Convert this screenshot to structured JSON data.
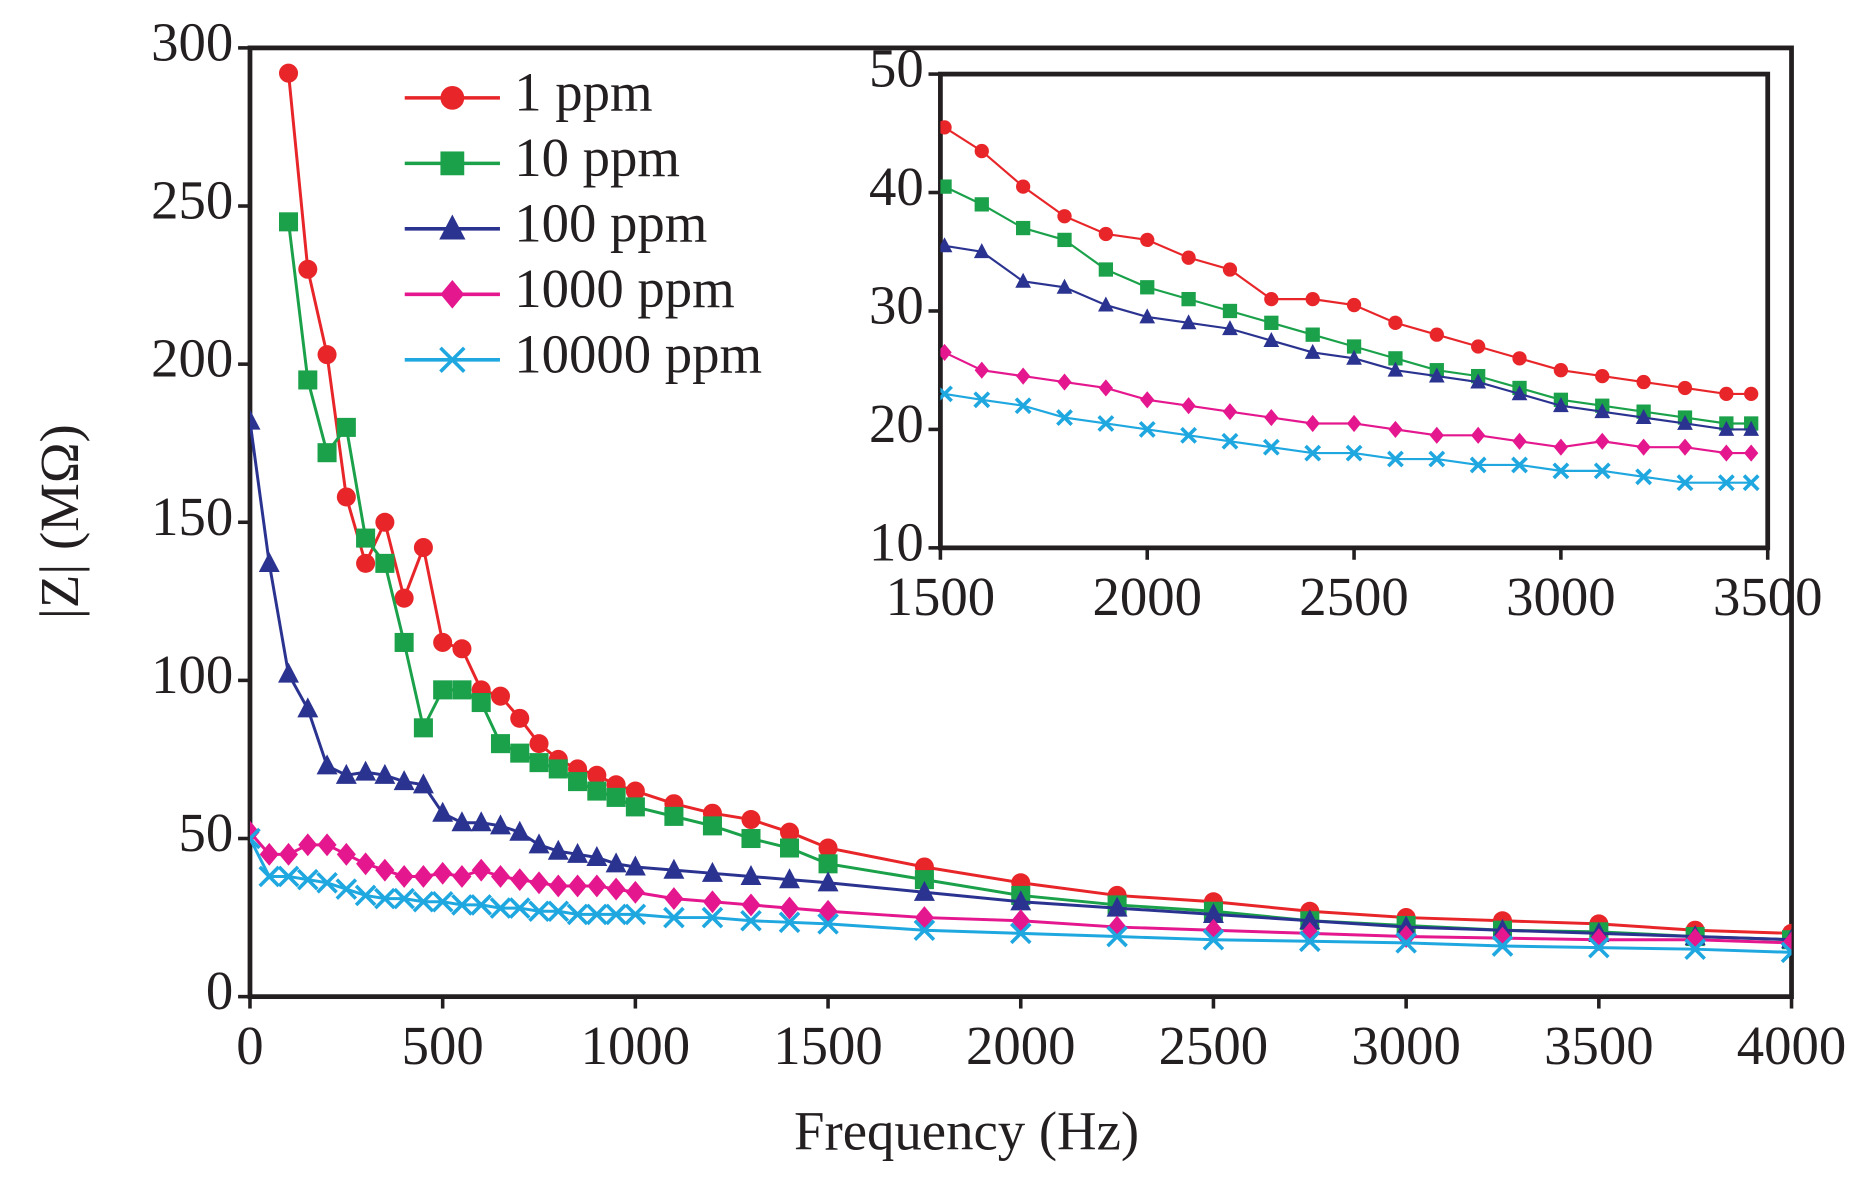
{
  "chart_data": [
    {
      "type": "line",
      "xlabel": "Frequency (Hz)",
      "ylabel": "|Z| (MΩ)",
      "x": [
        0,
        50,
        100,
        150,
        200,
        250,
        300,
        350,
        400,
        450,
        500,
        550,
        600,
        650,
        700,
        750,
        800,
        850,
        900,
        950,
        1000,
        1100,
        1200,
        1300,
        1400,
        1500,
        1750,
        2000,
        2250,
        2500,
        2750,
        3000,
        3250,
        3500,
        3750,
        4000
      ],
      "xlim": [
        0,
        4000
      ],
      "xticks": [
        0,
        500,
        1000,
        1500,
        2000,
        2500,
        3000,
        3500,
        4000
      ],
      "ylim": [
        0,
        300
      ],
      "yticks": [
        0,
        50,
        100,
        150,
        200,
        250,
        300
      ],
      "legend": "upper left",
      "series": [
        {
          "name": "1 ppm",
          "color": "#e8262a",
          "marker": "circle",
          "values": [
            null,
            null,
            292,
            230,
            203,
            158,
            137,
            150,
            126,
            142,
            112,
            110,
            97,
            95,
            88,
            80,
            75,
            72,
            70,
            67,
            65,
            61,
            58,
            56,
            52,
            47,
            41,
            36,
            32,
            30,
            27,
            25,
            24,
            23,
            21,
            20
          ]
        },
        {
          "name": "10 ppm",
          "color": "#1aa14a",
          "marker": "square",
          "values": [
            null,
            null,
            245,
            195,
            172,
            180,
            145,
            137,
            112,
            85,
            97,
            97,
            93,
            80,
            77,
            74,
            72,
            68,
            65,
            63,
            60,
            57,
            54,
            50,
            47,
            42,
            37,
            32,
            29,
            27,
            24,
            22.5,
            21,
            20.5,
            19,
            18
          ]
        },
        {
          "name": "100 ppm",
          "color": "#2b3390",
          "marker": "triangle",
          "values": [
            182,
            137,
            102,
            91,
            73,
            70,
            71,
            70,
            68,
            67,
            58,
            55,
            55,
            54,
            52,
            48,
            46,
            45,
            44,
            42,
            41,
            40,
            39,
            38,
            37,
            36,
            33,
            30,
            28,
            26,
            24,
            22,
            21,
            20,
            19,
            18
          ]
        },
        {
          "name": "1000 ppm",
          "color": "#e5178e",
          "marker": "diamond",
          "values": [
            52,
            45,
            45,
            48,
            48,
            45,
            42,
            40,
            38,
            38,
            39,
            38,
            40,
            38,
            37,
            36,
            35,
            35,
            35,
            34,
            33,
            31,
            30,
            29,
            28,
            27,
            25,
            24,
            22,
            21,
            20,
            19,
            18.5,
            18,
            18,
            17
          ]
        },
        {
          "name": "10000 ppm",
          "color": "#1fa7e0",
          "marker": "x",
          "values": [
            50,
            38,
            38,
            37,
            36,
            34,
            32,
            31,
            31,
            30,
            30,
            29,
            29,
            28,
            28,
            27,
            27,
            26,
            26,
            26,
            26,
            25,
            25,
            24,
            23.5,
            23,
            21,
            20,
            19,
            18,
            17.5,
            17,
            16,
            15.5,
            15,
            14
          ]
        }
      ]
    },
    {
      "type": "line",
      "x": [
        1510,
        1600,
        1700,
        1800,
        1900,
        2000,
        2100,
        2200,
        2300,
        2400,
        2500,
        2600,
        2700,
        2800,
        2900,
        3000,
        3100,
        3200,
        3300,
        3400,
        3460
      ],
      "xlim": [
        1500,
        3500
      ],
      "xticks": [
        1500,
        2000,
        2500,
        3000,
        3500
      ],
      "ylim": [
        10,
        50
      ],
      "yticks": [
        10,
        20,
        30,
        40,
        50
      ],
      "series": [
        {
          "color": "#e8262a",
          "marker": "circle",
          "values": [
            45.5,
            43.5,
            40.5,
            38,
            36.5,
            36,
            34.5,
            33.5,
            31,
            31,
            30.5,
            29,
            28,
            27,
            26,
            25,
            24.5,
            24,
            23.5,
            23,
            23
          ]
        },
        {
          "color": "#1aa14a",
          "marker": "square",
          "values": [
            40.5,
            39,
            37,
            36,
            33.5,
            32,
            31,
            30,
            29,
            28,
            27,
            26,
            25,
            24.5,
            23.5,
            22.5,
            22,
            21.5,
            21,
            20.5,
            20.5
          ]
        },
        {
          "color": "#2b3390",
          "marker": "triangle",
          "values": [
            35.5,
            35,
            32.5,
            32,
            30.5,
            29.5,
            29,
            28.5,
            27.5,
            26.5,
            26,
            25,
            24.5,
            24,
            23,
            22,
            21.5,
            21,
            20.5,
            20,
            20
          ]
        },
        {
          "color": "#e5178e",
          "marker": "diamond",
          "values": [
            26.5,
            25,
            24.5,
            24,
            23.5,
            22.5,
            22,
            21.5,
            21,
            20.5,
            20.5,
            20,
            19.5,
            19.5,
            19,
            18.5,
            19,
            18.5,
            18.5,
            18,
            18
          ]
        },
        {
          "color": "#1fa7e0",
          "marker": "x",
          "values": [
            23,
            22.5,
            22,
            21,
            20.5,
            20,
            19.5,
            19,
            18.5,
            18,
            18,
            17.5,
            17.5,
            17,
            17,
            16.5,
            16.5,
            16,
            15.5,
            15.5,
            15.5
          ]
        }
      ]
    }
  ]
}
